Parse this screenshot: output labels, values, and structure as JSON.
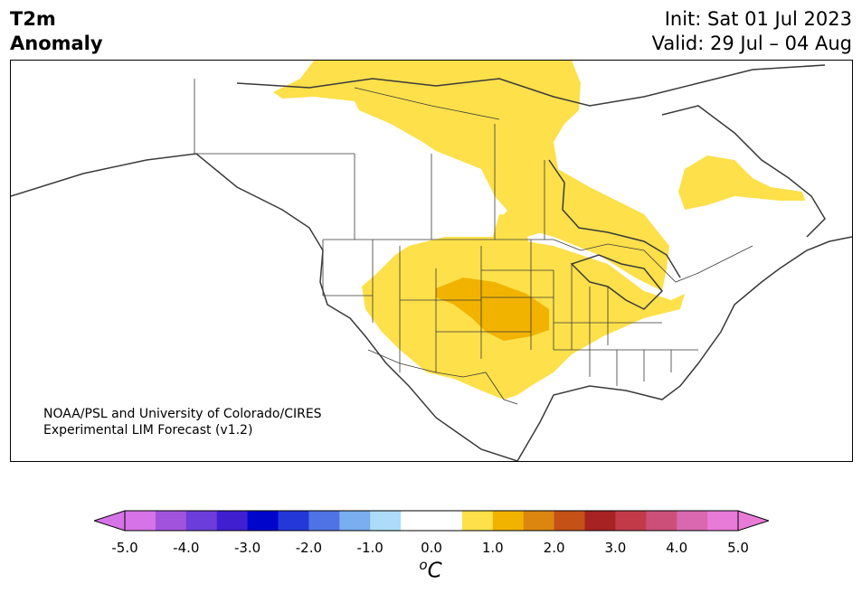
{
  "title": {
    "line1": "T2m",
    "line2": "Anomaly"
  },
  "header": {
    "init": "Init: Sat 01 Jul 2023",
    "valid": "Valid: 29 Jul – 04 Aug"
  },
  "credit": {
    "line1": "NOAA/PSL and University of Colorado/CIRES",
    "line2": "Experimental LIM Forecast (v1.2)"
  },
  "colorbar": {
    "unit": "C",
    "tick_labels": [
      "-5.0",
      "-4.0",
      "-3.0",
      "-2.0",
      "-1.0",
      "0.0",
      "1.0",
      "2.0",
      "3.0",
      "4.0",
      "5.0"
    ],
    "colors": [
      "#d673e8",
      "#a153dd",
      "#6b3ddb",
      "#3f1fd0",
      "#0005cc",
      "#2437d8",
      "#4f73e4",
      "#79aef0",
      "#acdcf8",
      "#ffffff",
      "#ffffff",
      "#fde04a",
      "#f1b300",
      "#dc8610",
      "#c55116",
      "#a72222",
      "#c23a48",
      "#cc4f7a",
      "#d968b0",
      "#e87ad8"
    ],
    "extend_low_color": "#d673e8",
    "extend_high_color": "#e87ad8"
  },
  "map": {
    "region": "North America",
    "anomaly_fill": {
      "weak_warm": "#fde04a",
      "moderate_warm": "#f1b300"
    }
  }
}
